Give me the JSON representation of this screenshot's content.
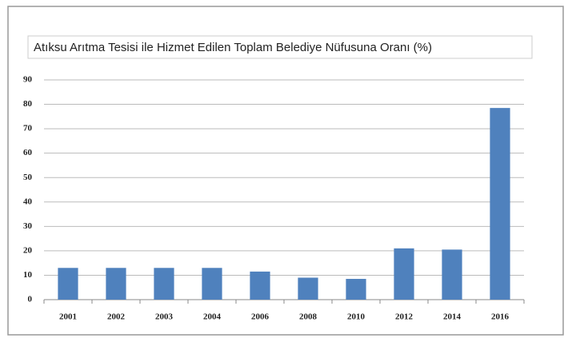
{
  "chart_data": {
    "type": "bar",
    "title": "Atıksu Arıtma Tesisi ile Hizmet Edilen Toplam Belediye Nüfusuna Oranı (%)",
    "categories": [
      "2001",
      "2002",
      "2003",
      "2004",
      "2006",
      "2008",
      "2010",
      "2012",
      "2014",
      "2016"
    ],
    "values": [
      13,
      13,
      13,
      13,
      11.5,
      9,
      8.5,
      21,
      20.5,
      78.5
    ],
    "color": "#4f81bd",
    "ylim": [
      0,
      90
    ],
    "yticks": [
      0,
      10,
      20,
      30,
      40,
      50,
      60,
      70,
      80,
      90
    ],
    "grid": true
  }
}
